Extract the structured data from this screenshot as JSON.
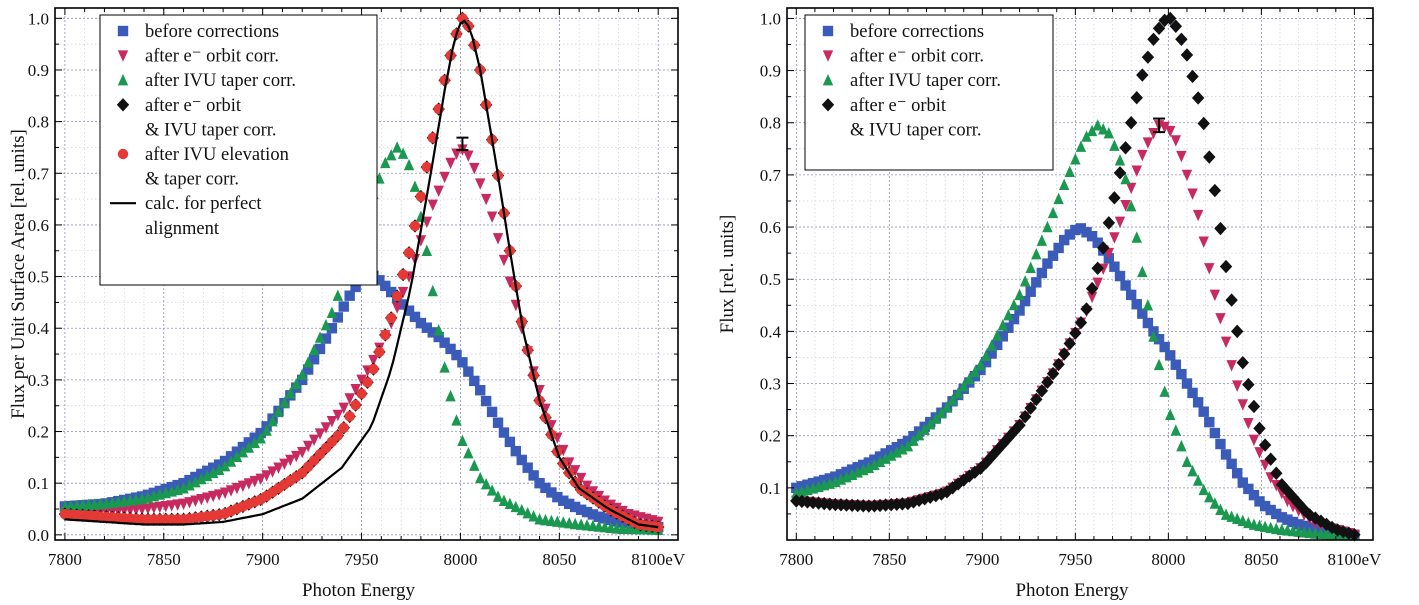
{
  "chart_data": [
    {
      "type": "scatter",
      "x_unit": "eV",
      "xlabel": "Photon Energy",
      "ylabel": "Flux per Unit Surface Area [rel. units]",
      "xlim": [
        7795,
        8110
      ],
      "ylim": [
        -0.01,
        1.02
      ],
      "xticks": [
        7800,
        7850,
        7900,
        7950,
        8000,
        8050,
        8100
      ],
      "xtick_labels": [
        "7800",
        "7850",
        "7900",
        "7950",
        "8000",
        "8050",
        "8100eV"
      ],
      "yticks": [
        0.0,
        0.1,
        0.2,
        0.3,
        0.4,
        0.5,
        0.6,
        0.7,
        0.8,
        0.9,
        1.0
      ],
      "ytick_labels": [
        "0.0",
        "0.1",
        "0.2",
        "0.3",
        "0.4",
        "0.5",
        "0.6",
        "0.7",
        "0.8",
        "0.9",
        "1.0"
      ],
      "grid": true,
      "legend_position": "top-left",
      "error_bar": {
        "x": 8001,
        "y": 0.757,
        "err": 0.012
      },
      "series": [
        {
          "name": "before corrections",
          "legend_lines": [
            "before corrections"
          ],
          "marker": "square",
          "color": "#3a5bb8",
          "x": [
            7800,
            7820,
            7840,
            7860,
            7880,
            7900,
            7920,
            7935,
            7945,
            7953,
            7960,
            7970,
            7980,
            7990,
            8000,
            8010,
            8020,
            8030,
            8040,
            8050,
            8060,
            8070,
            8080,
            8090,
            8100
          ],
          "y": [
            0.055,
            0.06,
            0.075,
            0.1,
            0.14,
            0.2,
            0.3,
            0.4,
            0.47,
            0.51,
            0.49,
            0.45,
            0.41,
            0.38,
            0.34,
            0.28,
            0.21,
            0.15,
            0.1,
            0.07,
            0.05,
            0.035,
            0.025,
            0.02,
            0.015
          ]
        },
        {
          "name": "after e⁻ orbit corr.",
          "legend_lines": [
            "after e⁻ orbit corr."
          ],
          "marker": "triangle-down",
          "color": "#c72a5e",
          "x": [
            7800,
            7820,
            7840,
            7860,
            7880,
            7900,
            7920,
            7940,
            7955,
            7965,
            7975,
            7985,
            7995,
            8000,
            8005,
            8015,
            8025,
            8035,
            8045,
            8055,
            8065,
            8075,
            8085,
            8100
          ],
          "y": [
            0.045,
            0.045,
            0.05,
            0.06,
            0.08,
            0.11,
            0.16,
            0.24,
            0.33,
            0.41,
            0.51,
            0.63,
            0.72,
            0.75,
            0.73,
            0.63,
            0.49,
            0.34,
            0.22,
            0.14,
            0.09,
            0.06,
            0.04,
            0.025
          ]
        },
        {
          "name": "after IVU taper corr.",
          "legend_lines": [
            "after IVU taper corr."
          ],
          "marker": "triangle-up",
          "color": "#1a9850",
          "x": [
            7800,
            7820,
            7840,
            7860,
            7880,
            7900,
            7920,
            7935,
            7945,
            7955,
            7962,
            7968,
            7973,
            7978,
            7983,
            7988,
            7993,
            8000,
            8010,
            8020,
            8030,
            8040,
            8060,
            8080,
            8100
          ],
          "y": [
            0.055,
            0.06,
            0.07,
            0.09,
            0.13,
            0.19,
            0.31,
            0.43,
            0.54,
            0.65,
            0.72,
            0.75,
            0.73,
            0.66,
            0.55,
            0.42,
            0.3,
            0.19,
            0.11,
            0.07,
            0.05,
            0.03,
            0.02,
            0.012,
            0.01
          ]
        },
        {
          "name": "after e⁻ orbit & IVU taper corr.",
          "legend_lines": [
            "after e⁻ orbit",
            "& IVU taper corr."
          ],
          "marker": "diamond",
          "color": "#111111",
          "x": [
            7800,
            7820,
            7840,
            7860,
            7880,
            7900,
            7920,
            7940,
            7955,
            7965,
            7975,
            7985,
            7992,
            7997,
            8001,
            8005,
            8010,
            8018,
            8025,
            8032,
            8040,
            8050,
            8060,
            8075,
            8090,
            8100
          ],
          "y": [
            0.04,
            0.035,
            0.03,
            0.03,
            0.04,
            0.07,
            0.12,
            0.2,
            0.31,
            0.42,
            0.56,
            0.75,
            0.88,
            0.96,
            1.0,
            0.98,
            0.9,
            0.72,
            0.55,
            0.39,
            0.26,
            0.15,
            0.09,
            0.05,
            0.02,
            0.015
          ]
        },
        {
          "name": "after IVU elevation & taper corr.",
          "legend_lines": [
            "after IVU elevation",
            "& taper corr."
          ],
          "marker": "circle",
          "color": "#e53935",
          "x": [
            7800,
            7820,
            7840,
            7860,
            7880,
            7900,
            7920,
            7940,
            7955,
            7965,
            7975,
            7985,
            7992,
            7997,
            8001,
            8005,
            8010,
            8018,
            8025,
            8032,
            8040,
            8050,
            8060,
            8075,
            8090,
            8100
          ],
          "y": [
            0.04,
            0.035,
            0.03,
            0.03,
            0.04,
            0.07,
            0.12,
            0.2,
            0.31,
            0.42,
            0.56,
            0.75,
            0.88,
            0.96,
            1.0,
            0.98,
            0.9,
            0.72,
            0.55,
            0.39,
            0.26,
            0.15,
            0.09,
            0.05,
            0.02,
            0.015
          ]
        },
        {
          "name": "calc. for perfect alignment",
          "legend_lines": [
            "calc. for perfect",
            "alignment"
          ],
          "marker": "line",
          "color": "#000000",
          "x": [
            7800,
            7820,
            7840,
            7860,
            7880,
            7900,
            7920,
            7940,
            7955,
            7965,
            7975,
            7985,
            7992,
            7997,
            8001,
            8005,
            8010,
            8018,
            8025,
            8032,
            8040,
            8050,
            8060,
            8075,
            8090,
            8100
          ],
          "y": [
            0.03,
            0.025,
            0.02,
            0.02,
            0.025,
            0.04,
            0.07,
            0.13,
            0.21,
            0.32,
            0.48,
            0.7,
            0.86,
            0.96,
            1.0,
            0.98,
            0.9,
            0.72,
            0.55,
            0.39,
            0.26,
            0.15,
            0.09,
            0.05,
            0.02,
            0.015
          ]
        }
      ]
    },
    {
      "type": "scatter",
      "x_unit": "eV",
      "xlabel": "Photon Energy",
      "ylabel": "Flux [rel. units]",
      "xlim": [
        7795,
        8110
      ],
      "ylim": [
        0.0,
        1.02
      ],
      "xticks": [
        7800,
        7850,
        7900,
        7950,
        8000,
        8050,
        8100
      ],
      "xtick_labels": [
        "7800",
        "7850",
        "7900",
        "7950",
        "8000",
        "8050",
        "8100eV"
      ],
      "yticks": [
        0.1,
        0.2,
        0.3,
        0.4,
        0.5,
        0.6,
        0.7,
        0.8,
        0.9,
        1.0
      ],
      "ytick_labels": [
        "0.1",
        "0.2",
        "0.3",
        "0.4",
        "0.5",
        "0.6",
        "0.7",
        "0.8",
        "0.9",
        "1.0"
      ],
      "grid": true,
      "legend_position": "top-left",
      "error_bar": {
        "x": 7995,
        "y": 0.795,
        "err": 0.013
      },
      "series": [
        {
          "name": "before corrections",
          "legend_lines": [
            "before corrections"
          ],
          "marker": "square",
          "color": "#3a5bb8",
          "x": [
            7800,
            7820,
            7840,
            7860,
            7880,
            7900,
            7920,
            7935,
            7945,
            7952,
            7960,
            7970,
            7980,
            7990,
            8000,
            8010,
            8020,
            8030,
            8040,
            8050,
            8060,
            8070,
            8080,
            8090,
            8100
          ],
          "y": [
            0.1,
            0.12,
            0.15,
            0.19,
            0.25,
            0.33,
            0.44,
            0.53,
            0.58,
            0.6,
            0.58,
            0.53,
            0.47,
            0.41,
            0.36,
            0.3,
            0.24,
            0.17,
            0.11,
            0.07,
            0.045,
            0.03,
            0.02,
            0.015,
            0.01
          ]
        },
        {
          "name": "after e⁻ orbit corr.",
          "legend_lines": [
            "after e⁻ orbit corr."
          ],
          "marker": "triangle-down",
          "color": "#c72a5e",
          "x": [
            7800,
            7820,
            7840,
            7860,
            7880,
            7900,
            7920,
            7940,
            7955,
            7965,
            7975,
            7985,
            7990,
            7995,
            8000,
            8005,
            8015,
            8025,
            8035,
            8045,
            8055,
            8065,
            8080,
            8100
          ],
          "y": [
            0.075,
            0.068,
            0.065,
            0.07,
            0.09,
            0.14,
            0.22,
            0.33,
            0.43,
            0.52,
            0.62,
            0.73,
            0.77,
            0.795,
            0.79,
            0.76,
            0.64,
            0.47,
            0.32,
            0.2,
            0.12,
            0.07,
            0.03,
            0.01
          ]
        },
        {
          "name": "after IVU taper corr.",
          "legend_lines": [
            "after IVU taper corr."
          ],
          "marker": "triangle-up",
          "color": "#1a9850",
          "x": [
            7800,
            7820,
            7840,
            7860,
            7880,
            7900,
            7920,
            7935,
            7945,
            7955,
            7962,
            7968,
            7973,
            7978,
            7983,
            7988,
            7993,
            8000,
            8010,
            8020,
            8030,
            8045,
            8060,
            8080,
            8100
          ],
          "y": [
            0.09,
            0.11,
            0.14,
            0.18,
            0.25,
            0.34,
            0.47,
            0.6,
            0.69,
            0.77,
            0.795,
            0.78,
            0.74,
            0.68,
            0.58,
            0.47,
            0.37,
            0.25,
            0.15,
            0.09,
            0.05,
            0.03,
            0.02,
            0.012,
            0.01
          ]
        },
        {
          "name": "after e⁻ orbit & IVU taper corr.",
          "legend_lines": [
            "after e⁻ orbit",
            "& IVU taper corr."
          ],
          "marker": "diamond",
          "color": "#111111",
          "x": [
            7800,
            7820,
            7840,
            7860,
            7880,
            7900,
            7920,
            7940,
            7955,
            7965,
            7975,
            7985,
            7992,
            7997,
            8001,
            8005,
            8010,
            8018,
            8025,
            8032,
            8040,
            8050,
            8060,
            8075,
            8090,
            8100
          ],
          "y": [
            0.075,
            0.068,
            0.065,
            0.07,
            0.09,
            0.14,
            0.22,
            0.33,
            0.43,
            0.56,
            0.72,
            0.88,
            0.96,
            0.995,
            1.0,
            0.98,
            0.93,
            0.82,
            0.67,
            0.5,
            0.34,
            0.2,
            0.11,
            0.05,
            0.02,
            0.01
          ]
        }
      ]
    }
  ]
}
